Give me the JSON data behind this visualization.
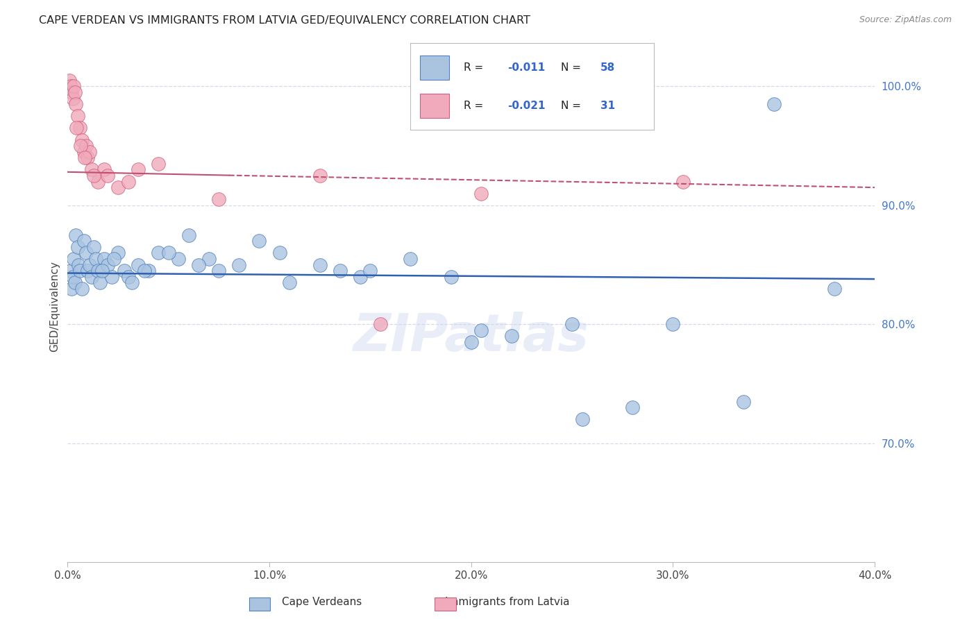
{
  "title": "CAPE VERDEAN VS IMMIGRANTS FROM LATVIA GED/EQUIVALENCY CORRELATION CHART",
  "source": "Source: ZipAtlas.com",
  "ylabel": "GED/Equivalency",
  "x_min": 0.0,
  "x_max": 40.0,
  "y_min": 60.0,
  "y_max": 103.0,
  "y_ticks": [
    70.0,
    80.0,
    90.0,
    100.0
  ],
  "y_tick_labels": [
    "70.0%",
    "80.0%",
    "90.0%",
    "100.0%"
  ],
  "x_ticks": [
    0.0,
    10.0,
    20.0,
    30.0,
    40.0
  ],
  "x_tick_labels": [
    "0.0%",
    "10.0%",
    "20.0%",
    "30.0%",
    "40.0%"
  ],
  "legend_labels": [
    "Cape Verdeans",
    "Immigrants from Latvia"
  ],
  "r_blue": -0.011,
  "n_blue": 58,
  "r_pink": -0.021,
  "n_pink": 31,
  "blue_color": "#aac4e0",
  "pink_color": "#f0aabb",
  "blue_edge_color": "#5080c0",
  "pink_edge_color": "#d06080",
  "blue_line_color": "#3060b0",
  "pink_line_color": "#c05070",
  "blue_line_y0": 84.3,
  "blue_line_y1": 83.8,
  "pink_line_y0": 92.8,
  "pink_line_y1": 91.5,
  "blue_scatter_x": [
    0.15,
    0.2,
    0.25,
    0.3,
    0.35,
    0.4,
    0.5,
    0.55,
    0.6,
    0.7,
    0.8,
    0.9,
    1.0,
    1.1,
    1.2,
    1.3,
    1.4,
    1.5,
    1.6,
    1.8,
    2.0,
    2.2,
    2.5,
    2.8,
    3.0,
    3.2,
    3.5,
    4.0,
    4.5,
    5.5,
    6.0,
    7.0,
    7.5,
    8.5,
    9.5,
    10.5,
    11.0,
    12.5,
    13.5,
    14.5,
    15.0,
    17.0,
    19.0,
    20.5,
    22.0,
    25.0,
    28.0,
    30.0,
    33.5,
    38.0,
    1.7,
    2.3,
    3.8,
    5.0,
    6.5,
    20.0,
    25.5,
    35.0
  ],
  "blue_scatter_y": [
    84.5,
    83.0,
    84.0,
    85.5,
    83.5,
    87.5,
    86.5,
    85.0,
    84.5,
    83.0,
    87.0,
    86.0,
    84.5,
    85.0,
    84.0,
    86.5,
    85.5,
    84.5,
    83.5,
    85.5,
    85.0,
    84.0,
    86.0,
    84.5,
    84.0,
    83.5,
    85.0,
    84.5,
    86.0,
    85.5,
    87.5,
    85.5,
    84.5,
    85.0,
    87.0,
    86.0,
    83.5,
    85.0,
    84.5,
    84.0,
    84.5,
    85.5,
    84.0,
    79.5,
    79.0,
    80.0,
    73.0,
    80.0,
    73.5,
    83.0,
    84.5,
    85.5,
    84.5,
    86.0,
    85.0,
    78.5,
    72.0,
    98.5
  ],
  "pink_scatter_x": [
    0.1,
    0.15,
    0.2,
    0.25,
    0.3,
    0.35,
    0.4,
    0.5,
    0.6,
    0.7,
    0.8,
    0.9,
    1.0,
    1.1,
    1.2,
    1.5,
    1.8,
    2.0,
    2.5,
    3.0,
    3.5,
    4.5,
    7.5,
    12.5,
    15.5,
    20.5,
    30.5,
    0.45,
    0.65,
    0.85,
    1.3
  ],
  "pink_scatter_y": [
    100.5,
    100.0,
    99.5,
    99.0,
    100.0,
    99.5,
    98.5,
    97.5,
    96.5,
    95.5,
    94.5,
    95.0,
    94.0,
    94.5,
    93.0,
    92.0,
    93.0,
    92.5,
    91.5,
    92.0,
    93.0,
    93.5,
    90.5,
    92.5,
    80.0,
    91.0,
    92.0,
    96.5,
    95.0,
    94.0,
    92.5
  ],
  "background_color": "#ffffff",
  "grid_color": "#d8d8e8",
  "watermark_text": "ZIPatlas",
  "watermark_color": "#ccd8f0",
  "watermark_alpha": 0.45
}
